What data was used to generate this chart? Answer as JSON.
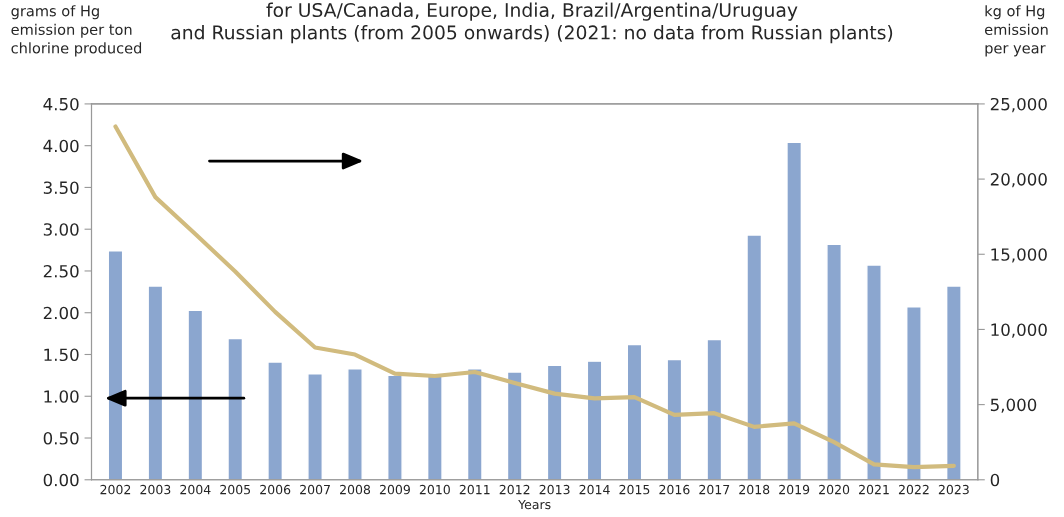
{
  "chart_data": {
    "type": "bar",
    "title": "for USA/Canada, Europe, India, Brazil/Argentina/Uruguay\nand Russian plants (from 2005 onwards) (2021: no data from Russian plants)",
    "xlabel": "Years",
    "ylabel": "grams of Hg\nemission per ton\nchlorine produced",
    "y2label": "kg of Hg\nemission\nper year",
    "categories": [
      "2002",
      "2003",
      "2004",
      "2005",
      "2006",
      "2007",
      "2008",
      "2009",
      "2010",
      "2011",
      "2012",
      "2013",
      "2014",
      "2015",
      "2016",
      "2017",
      "2018",
      "2019",
      "2020",
      "2021",
      "2022",
      "2023"
    ],
    "series": [
      {
        "color": "#8ba6cf",
        "values": [
          2.74,
          2.32,
          2.03,
          1.69,
          1.41,
          1.27,
          1.33,
          1.25,
          1.24,
          1.33,
          1.29,
          1.37,
          1.42,
          1.62,
          1.44,
          1.68,
          2.93,
          4.04,
          2.82,
          2.57,
          2.07,
          2.32
        ]
      },
      {
        "type": "line",
        "axis": "y2",
        "color": "#d1bb7e",
        "line_style": "solid",
        "values": [
          23500,
          18800,
          16350,
          13850,
          11170,
          8800,
          8330,
          7060,
          6900,
          7170,
          6440,
          5730,
          5410,
          5500,
          4320,
          4430,
          3520,
          3750,
          2500,
          1020,
          840,
          930
        ]
      }
    ],
    "ylim": [
      0,
      4.5
    ],
    "yticks": [
      {
        "value": 0,
        "label": "0.00"
      },
      {
        "value": 0.5,
        "label": "0.50"
      },
      {
        "value": 1,
        "label": "1.00"
      },
      {
        "value": 1.5,
        "label": "1.50"
      },
      {
        "value": 2,
        "label": "2.00"
      },
      {
        "value": 2.5,
        "label": "2.50"
      },
      {
        "value": 3,
        "label": "3.00"
      },
      {
        "value": 3.5,
        "label": "3.50"
      },
      {
        "value": 4,
        "label": "4.00"
      },
      {
        "value": 4.5,
        "label": "4.50"
      }
    ],
    "y2lim": [
      0,
      25000
    ],
    "y2ticks": [
      0,
      {
        "value": 5000,
        "label": "5,000"
      },
      {
        "value": 10000,
        "label": "10,000"
      },
      {
        "value": 15000,
        "label": "15,000"
      },
      {
        "value": 20000,
        "label": "20,000"
      },
      {
        "value": 25000,
        "label": "25,000"
      }
    ],
    "grid": false,
    "legend": false
  }
}
